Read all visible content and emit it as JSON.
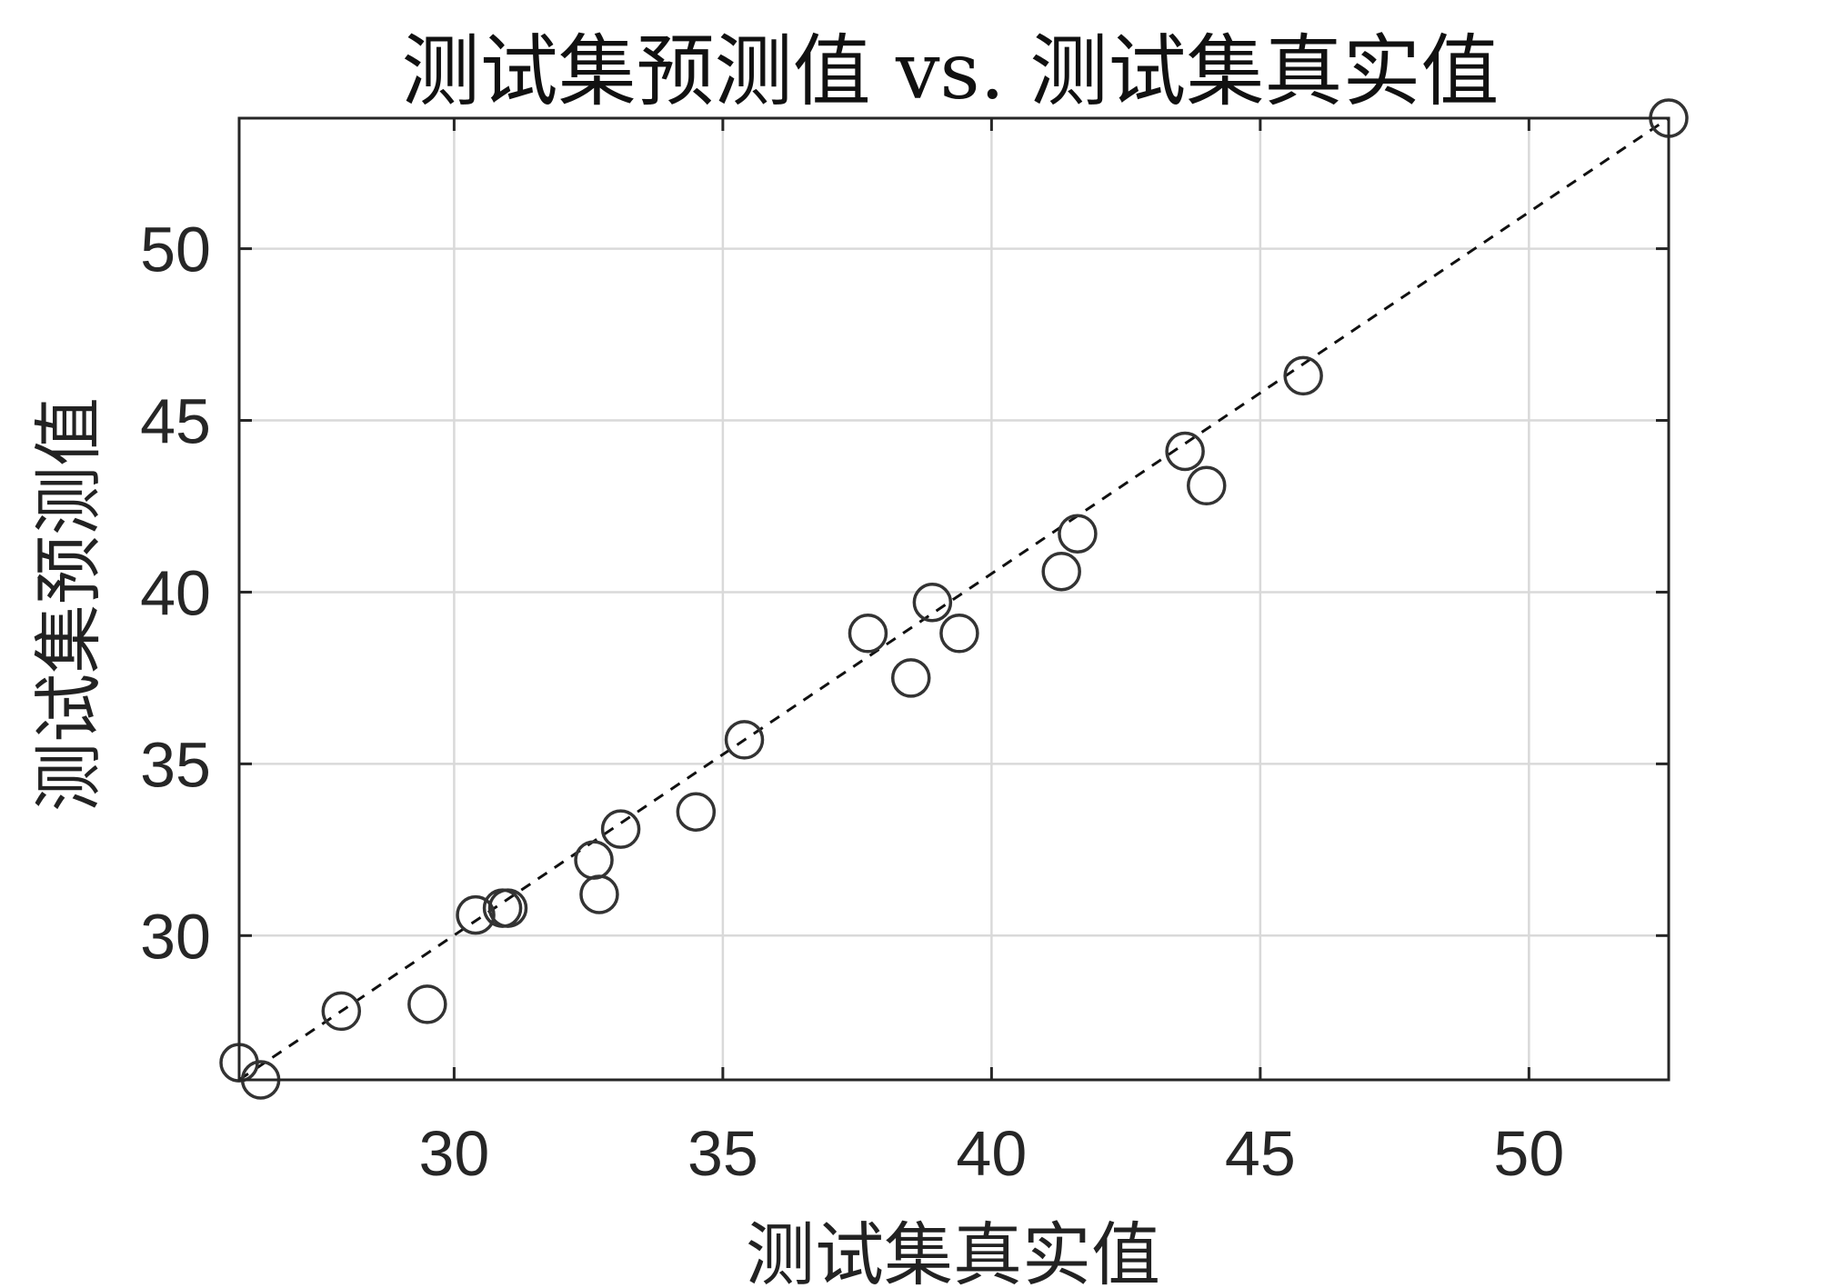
{
  "chart_data": {
    "type": "scatter",
    "title": "测试集预测值 vs. 测试集真实值",
    "xlabel": "测试集真实值",
    "ylabel": "测试集预测值",
    "xlim": [
      26.0,
      52.6
    ],
    "ylim": [
      25.8,
      53.8
    ],
    "xticks": [
      30,
      35,
      40,
      45,
      50
    ],
    "yticks": [
      30,
      35,
      40,
      45,
      50
    ],
    "grid": true,
    "marker": "open-circle",
    "marker_color": "#333333",
    "reference_line": {
      "style": "dashed",
      "color": "#111111",
      "from": [
        26.0,
        25.8
      ],
      "to": [
        52.6,
        53.8
      ]
    },
    "points": [
      {
        "x": 26.0,
        "y": 26.3
      },
      {
        "x": 26.4,
        "y": 25.8
      },
      {
        "x": 27.9,
        "y": 27.8
      },
      {
        "x": 29.5,
        "y": 28.0
      },
      {
        "x": 30.4,
        "y": 30.6
      },
      {
        "x": 30.9,
        "y": 30.8
      },
      {
        "x": 31.0,
        "y": 30.8
      },
      {
        "x": 32.6,
        "y": 32.2
      },
      {
        "x": 32.7,
        "y": 31.2
      },
      {
        "x": 33.1,
        "y": 33.1
      },
      {
        "x": 34.5,
        "y": 33.6
      },
      {
        "x": 35.4,
        "y": 35.7
      },
      {
        "x": 37.7,
        "y": 38.8
      },
      {
        "x": 38.5,
        "y": 37.5
      },
      {
        "x": 38.9,
        "y": 39.7
      },
      {
        "x": 39.4,
        "y": 38.8
      },
      {
        "x": 41.3,
        "y": 40.6
      },
      {
        "x": 41.6,
        "y": 41.7
      },
      {
        "x": 43.6,
        "y": 44.1
      },
      {
        "x": 44.0,
        "y": 43.1
      },
      {
        "x": 45.8,
        "y": 46.3
      },
      {
        "x": 52.6,
        "y": 53.8
      }
    ]
  }
}
